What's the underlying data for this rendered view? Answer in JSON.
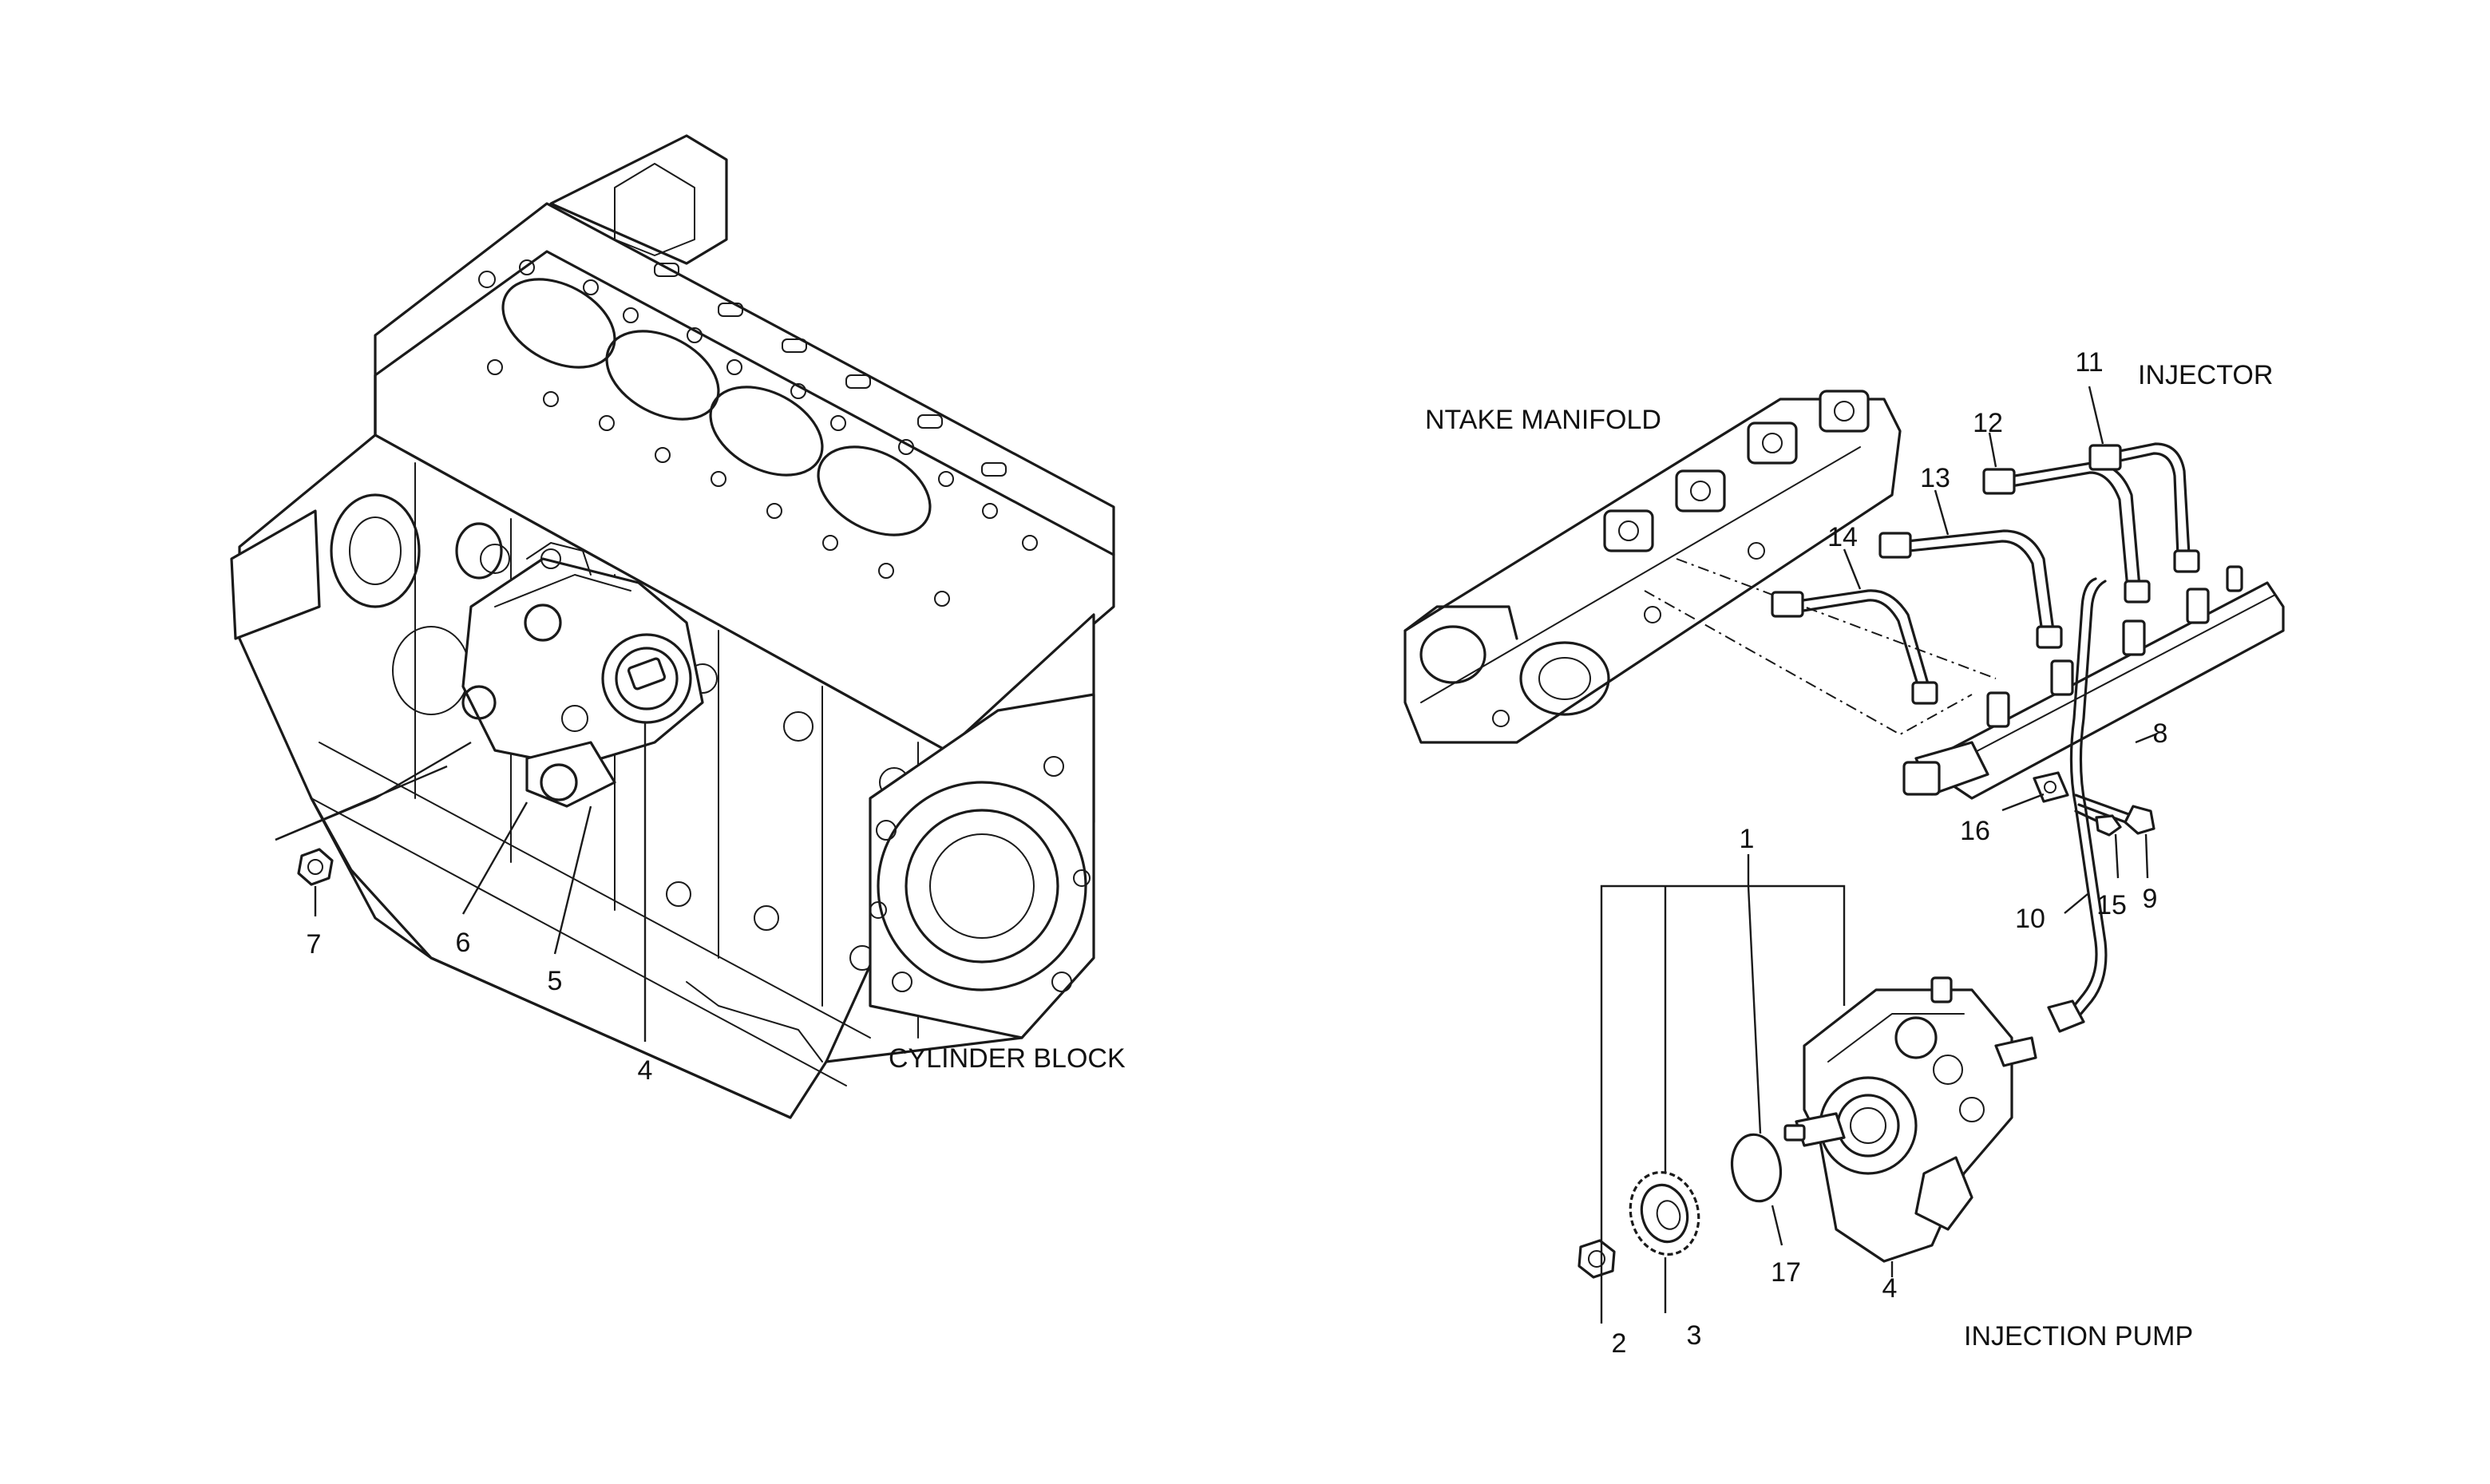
{
  "captions": {
    "cylinder_block": "CYLINDER BLOCK",
    "intake_manifold": "NTAKE MANIFOLD",
    "injector": "INJECTOR",
    "injection_pump": "INJECTION PUMP"
  },
  "callouts": {
    "c1": "1",
    "c2": "2",
    "c3": "3",
    "c4a": "4",
    "c4b": "4",
    "c5": "5",
    "c6": "6",
    "c7": "7",
    "c8": "8",
    "c9": "9",
    "c10": "10",
    "c11": "11",
    "c12": "12",
    "c13": "13",
    "c14": "14",
    "c15": "15",
    "c16": "16",
    "c17": "17"
  }
}
